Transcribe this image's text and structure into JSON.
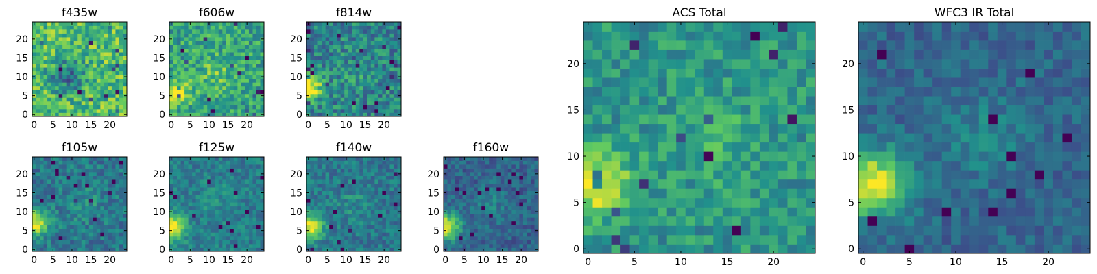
{
  "figure": {
    "colormap": [
      "#440154",
      "#3b528b",
      "#21918c",
      "#5ec962",
      "#fde725"
    ],
    "background": "#ffffff"
  },
  "chart_data": [
    {
      "type": "heatmap",
      "title": "f435w",
      "grid_size": 25,
      "xlim": [
        0,
        24
      ],
      "ylim": [
        0,
        24
      ],
      "xticks": [
        0,
        5,
        10,
        15,
        20
      ],
      "yticks": [
        0,
        5,
        10,
        15,
        20
      ],
      "xlabel": "",
      "ylabel": "",
      "bright_core": {
        "x": 1,
        "y": 7,
        "level": 0.72
      },
      "secondary": {
        "x": 9,
        "y": 10,
        "level": 0.05
      },
      "base_level": 0.7,
      "noise": 0.22,
      "grid": false
    },
    {
      "type": "heatmap",
      "title": "f606w",
      "grid_size": 25,
      "xlim": [
        0,
        24
      ],
      "ylim": [
        0,
        24
      ],
      "xticks": [
        0,
        5,
        10,
        15,
        20
      ],
      "yticks": [
        0,
        5,
        10,
        15,
        20
      ],
      "xlabel": "",
      "ylabel": "",
      "bright_core": {
        "x": 1,
        "y": 6,
        "level": 0.95
      },
      "secondary": {
        "x": 12,
        "y": 11,
        "level": 0.85
      },
      "base_level": 0.58,
      "noise": 0.2,
      "grid": false
    },
    {
      "type": "heatmap",
      "title": "f814w",
      "grid_size": 25,
      "xlim": [
        0,
        24
      ],
      "ylim": [
        0,
        24
      ],
      "xticks": [
        0,
        5,
        10,
        15,
        20
      ],
      "yticks": [
        0,
        5,
        10,
        15,
        20
      ],
      "xlabel": "",
      "ylabel": "",
      "bright_core": {
        "x": 0,
        "y": 7,
        "level": 1.0
      },
      "secondary": {
        "x": 13,
        "y": 11,
        "level": 0.6
      },
      "base_level": 0.45,
      "noise": 0.2,
      "grid": false
    },
    {
      "type": "heatmap",
      "title": "f105w",
      "grid_size": 25,
      "xlim": [
        0,
        24
      ],
      "ylim": [
        0,
        24
      ],
      "xticks": [
        0,
        5,
        10,
        15,
        20
      ],
      "yticks": [
        0,
        5,
        10,
        15,
        20
      ],
      "xlabel": "",
      "ylabel": "",
      "bright_core": {
        "x": 0,
        "y": 7,
        "level": 1.0
      },
      "secondary": {
        "x": 13,
        "y": 12,
        "level": 0.62
      },
      "base_level": 0.4,
      "noise": 0.14,
      "grid": false
    },
    {
      "type": "heatmap",
      "title": "f125w",
      "grid_size": 25,
      "xlim": [
        0,
        24
      ],
      "ylim": [
        0,
        24
      ],
      "xticks": [
        0,
        5,
        10,
        15,
        20
      ],
      "yticks": [
        0,
        5,
        10,
        15,
        20
      ],
      "xlabel": "",
      "ylabel": "",
      "bright_core": {
        "x": 0,
        "y": 6,
        "level": 1.0
      },
      "secondary": {
        "x": 12,
        "y": 13,
        "level": 0.55
      },
      "base_level": 0.42,
      "noise": 0.12,
      "grid": false
    },
    {
      "type": "heatmap",
      "title": "f140w",
      "grid_size": 25,
      "xlim": [
        0,
        24
      ],
      "ylim": [
        0,
        24
      ],
      "xticks": [
        0,
        5,
        10,
        15,
        20
      ],
      "yticks": [
        0,
        5,
        10,
        15,
        20
      ],
      "xlabel": "",
      "ylabel": "",
      "bright_core": {
        "x": 0,
        "y": 6,
        "level": 1.0
      },
      "secondary": {
        "x": 12,
        "y": 12,
        "level": 0.55
      },
      "base_level": 0.4,
      "noise": 0.13,
      "grid": false
    },
    {
      "type": "heatmap",
      "title": "f160w",
      "grid_size": 25,
      "xlim": [
        0,
        24
      ],
      "ylim": [
        0,
        24
      ],
      "xticks": [
        0,
        5,
        10,
        15,
        20
      ],
      "yticks": [
        0,
        5,
        10,
        15,
        20
      ],
      "xlabel": "",
      "ylabel": "",
      "bright_core": {
        "x": 0,
        "y": 6,
        "level": 1.0
      },
      "secondary": {
        "x": 12,
        "y": 12,
        "level": 0.52
      },
      "base_level": 0.32,
      "noise": 0.12,
      "grid": false
    },
    {
      "type": "heatmap",
      "title": "ACS Total",
      "grid_size": 25,
      "xlim": [
        0,
        24
      ],
      "ylim": [
        0,
        24
      ],
      "xticks": [
        0,
        5,
        10,
        15,
        20
      ],
      "yticks": [
        0,
        5,
        10,
        15,
        20
      ],
      "xlabel": "",
      "ylabel": "",
      "bright_core": {
        "x": 1,
        "y": 7,
        "level": 1.0
      },
      "secondary": {
        "x": 14,
        "y": 12,
        "level": 0.72
      },
      "base_level": 0.52,
      "noise": 0.15,
      "grid": false
    },
    {
      "type": "heatmap",
      "title": "WFC3 IR Total",
      "grid_size": 25,
      "xlim": [
        0,
        24
      ],
      "ylim": [
        0,
        24
      ],
      "xticks": [
        0,
        5,
        10,
        15,
        20
      ],
      "yticks": [
        0,
        5,
        10,
        15,
        20
      ],
      "xlabel": "",
      "ylabel": "",
      "bright_core": {
        "x": 1,
        "y": 7,
        "level": 1.0
      },
      "secondary": {
        "x": 13,
        "y": 12,
        "level": 0.55
      },
      "base_level": 0.33,
      "noise": 0.1,
      "grid": false
    }
  ]
}
